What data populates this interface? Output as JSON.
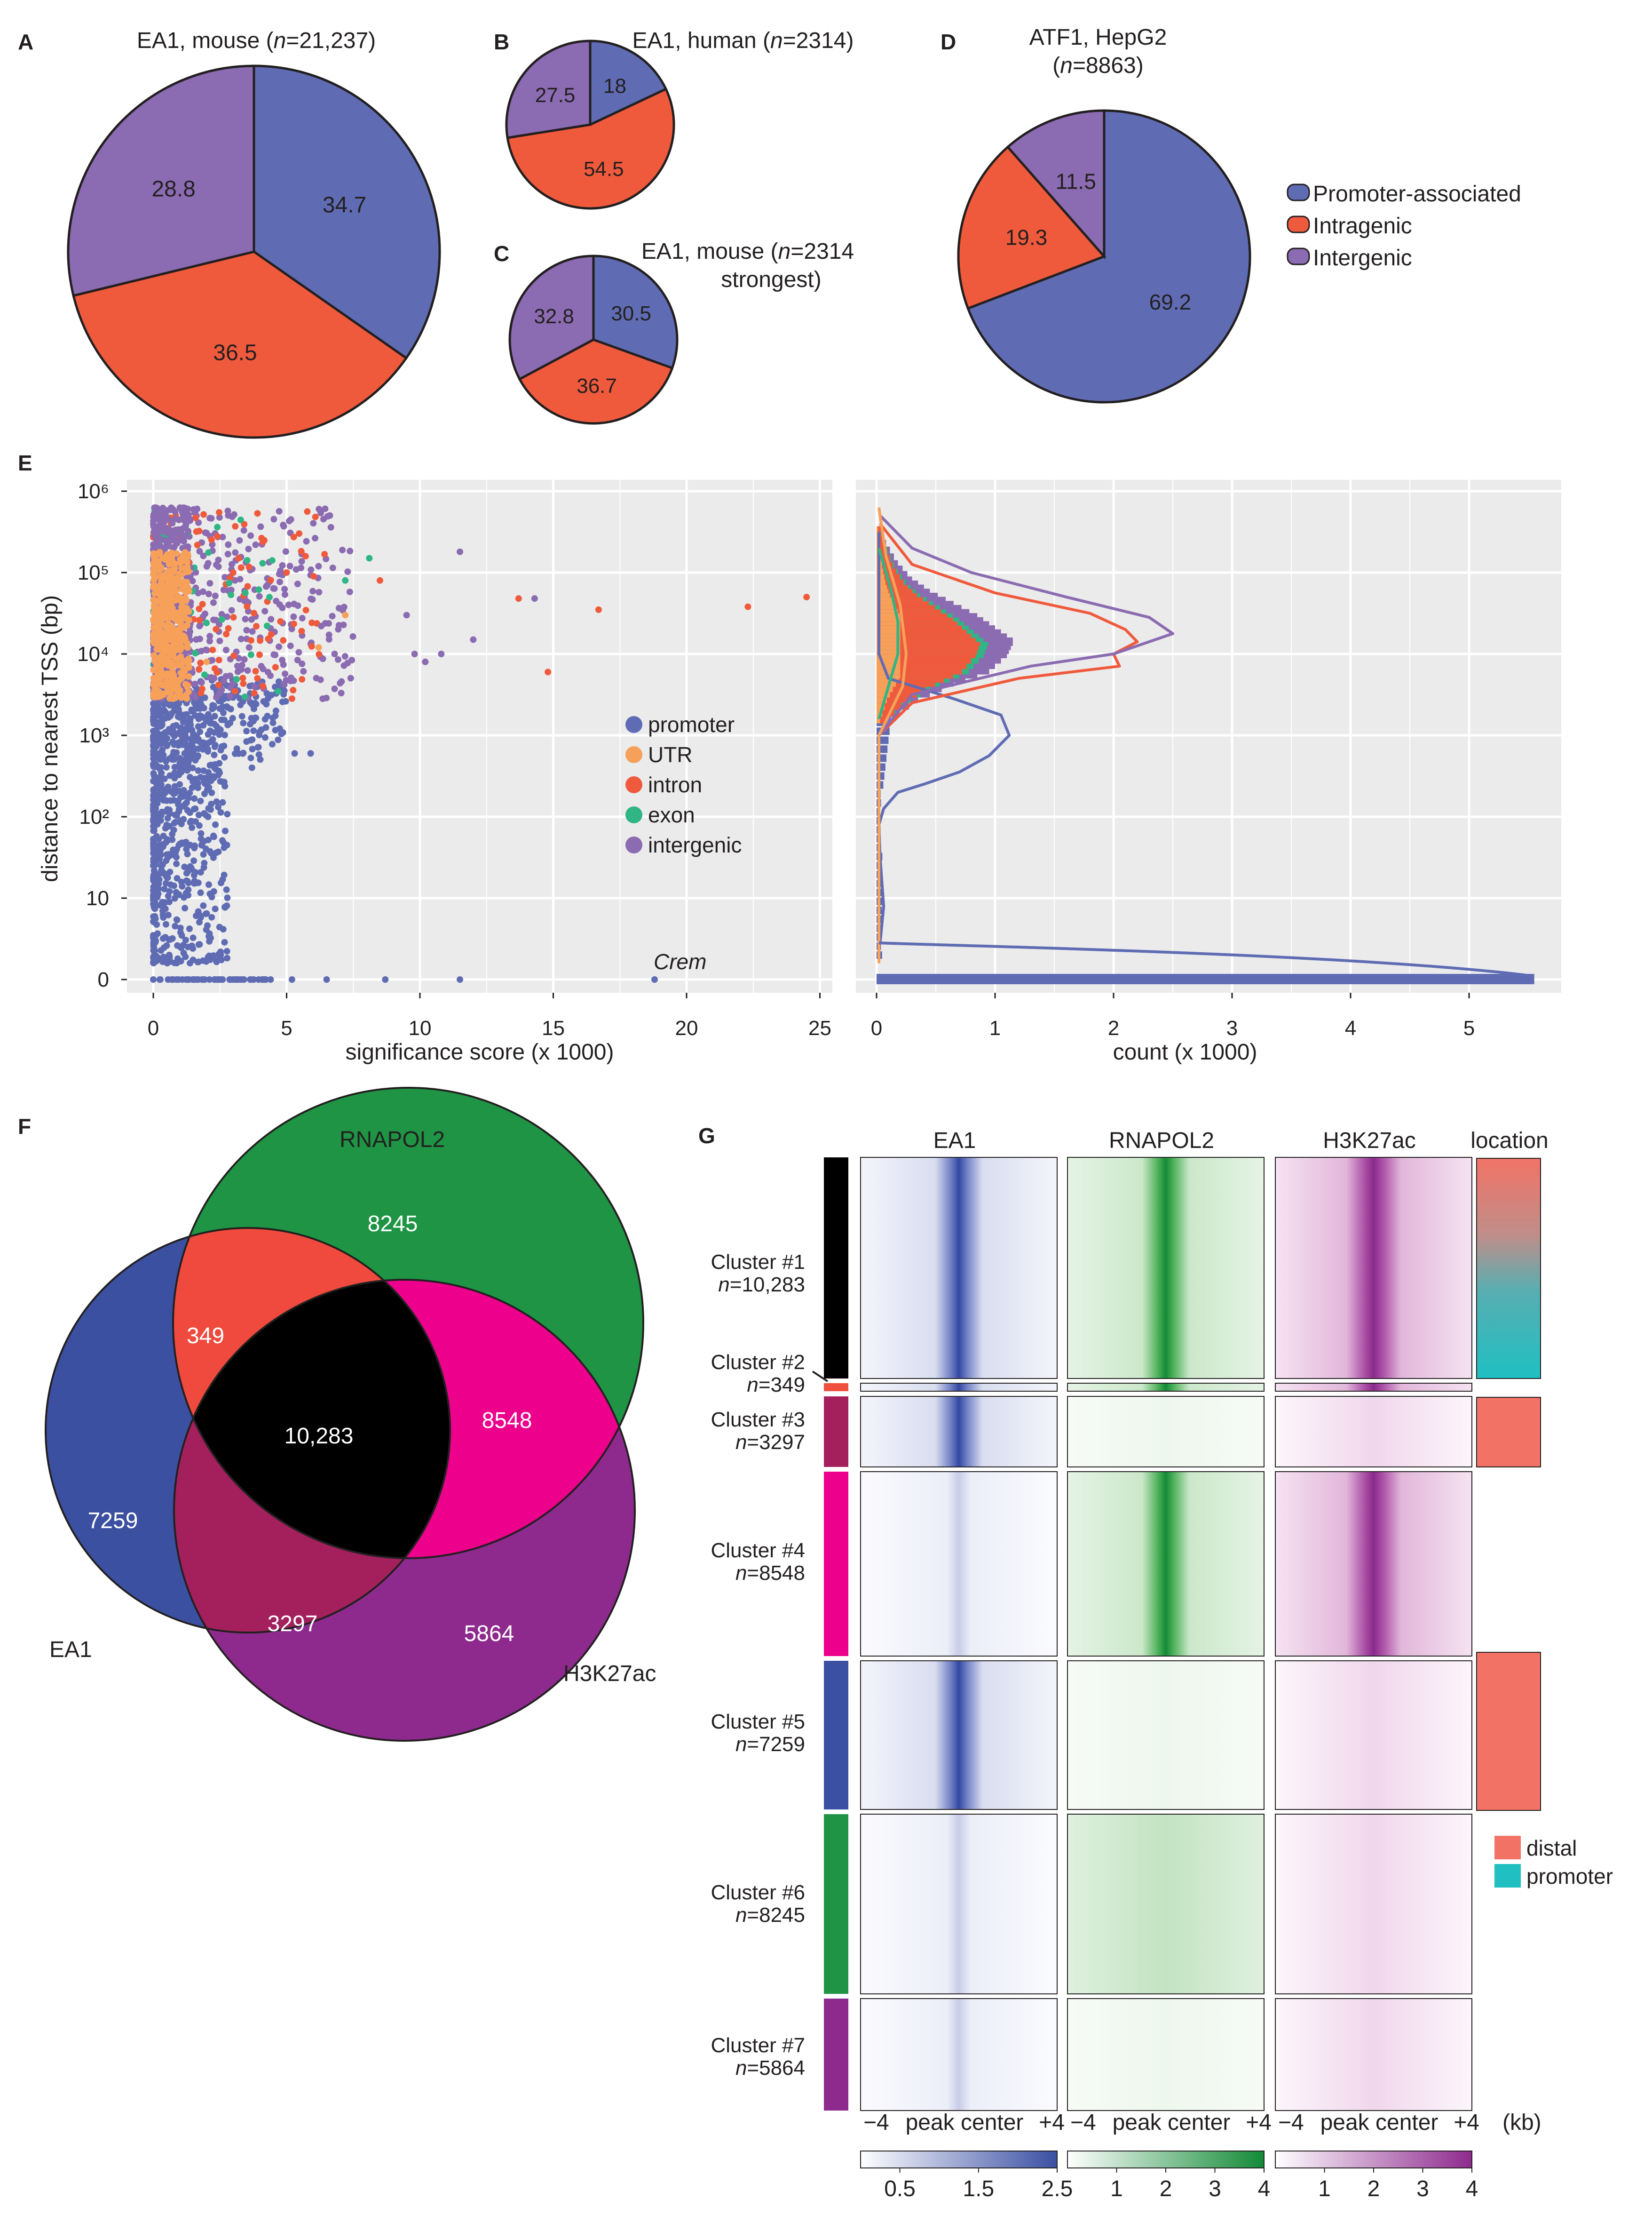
{
  "panels": {
    "A": {
      "letter": "A",
      "title": [
        "EA1, mouse (",
        "n",
        "=21,237)"
      ],
      "values": [
        34.7,
        36.5,
        28.8
      ],
      "labels": [
        "34.7",
        "36.5",
        "28.8"
      ]
    },
    "B": {
      "letter": "B",
      "title": [
        "EA1, human (",
        "n",
        "=2314)"
      ],
      "values": [
        18,
        54.5,
        27.5
      ],
      "labels": [
        "18",
        "54.5",
        "27.5"
      ]
    },
    "C": {
      "letter": "C",
      "title_line1": [
        "EA1, mouse (",
        "n",
        "=2314"
      ],
      "title_line2": "strongest)",
      "values": [
        30.5,
        36.7,
        32.8
      ],
      "labels": [
        "30.5",
        "36.7",
        "32.8"
      ]
    },
    "D": {
      "letter": "D",
      "title_line1": "ATF1, HepG2",
      "title_line2": [
        "(",
        "n",
        "=8863)"
      ],
      "values": [
        69.2,
        19.3,
        11.5
      ],
      "labels": [
        "69.2",
        "19.3",
        "11.5"
      ]
    },
    "E": {
      "letter": "E"
    },
    "F": {
      "letter": "F"
    },
    "G": {
      "letter": "G"
    }
  },
  "pie_legend": [
    "Promoter-associated",
    "Intragenic",
    "Intergenic"
  ],
  "colors": {
    "promoter": "#5f6cb4",
    "intragenic": "#f05a3c",
    "intergenic": "#8b6bb1",
    "utr": "#f7a05a",
    "exon": "#30b584",
    "panel_bg": "#ebebeb",
    "ea1": "#3b4fa3",
    "rnapol2": "#1e9444",
    "h3k27ac": "#8e2a8e",
    "c2": "#f04e3e",
    "c3": "#a3205d",
    "c4": "#ec008c",
    "distal": "#f27366",
    "promoter_loc": "#1fbfc2"
  },
  "chart_data": [
    {
      "type": "scatter",
      "xlabel": "significance score (x 1000)",
      "ylabel": "distance to nearest TSS (bp)",
      "xlim": [
        0,
        25
      ],
      "x_ticks": [
        "0",
        "5",
        "10",
        "15",
        "20",
        "25"
      ],
      "y_ticks": [
        "0",
        "10",
        "10²",
        "10³",
        "10⁴",
        "10⁵",
        "10⁶"
      ],
      "grid": true,
      "legend_position": "right",
      "legend": [
        "promoter",
        "UTR",
        "intron",
        "exon",
        "intergenic"
      ],
      "annotation": "Crem",
      "series": [
        {
          "name": "promoter",
          "points": [
            [
              18.8,
              0
            ],
            [
              11.5,
              0
            ],
            [
              8.7,
              0
            ],
            [
              6.5,
              0
            ],
            [
              5.2,
              0
            ],
            [
              4.4,
              0
            ],
            [
              2.6,
              150
            ],
            [
              1.9,
              50
            ],
            [
              5.3,
              600
            ],
            [
              5.9,
              600
            ],
            [
              3.7,
              400
            ],
            [
              4.6,
              2000
            ]
          ]
        },
        {
          "name": "intron",
          "points": [
            [
              24.5,
              50000
            ],
            [
              22.3,
              38000
            ],
            [
              16.7,
              35000
            ],
            [
              14.8,
              6000
            ],
            [
              13.7,
              48000
            ],
            [
              8.5,
              80000
            ],
            [
              5.0,
              100000
            ],
            [
              3.2,
              150000
            ]
          ]
        },
        {
          "name": "exon",
          "points": [
            [
              8.1,
              150000
            ],
            [
              7.2,
              80000
            ],
            [
              4.1,
              130000
            ]
          ]
        },
        {
          "name": "intergenic",
          "points": [
            [
              14.3,
              48000
            ],
            [
              11.5,
              180000
            ],
            [
              12.0,
              15000
            ],
            [
              9.8,
              10000
            ],
            [
              10.8,
              10000
            ],
            [
              9.5,
              30000
            ],
            [
              10.2,
              8000
            ],
            [
              6.8,
              10000
            ],
            [
              6.3,
              22000
            ]
          ]
        },
        {
          "name": "UTR",
          "points": [
            [
              6.2,
              12000
            ],
            [
              7.2,
              30000
            ],
            [
              1.0,
              20000
            ],
            [
              2.0,
              8000
            ]
          ]
        }
      ]
    },
    {
      "type": "area",
      "xlabel": "count (x 1000)",
      "xlim": [
        0,
        5.6
      ],
      "x_ticks": [
        "0",
        "1",
        "2",
        "3",
        "4",
        "5"
      ],
      "grid": true,
      "series": [
        {
          "name": "promoter",
          "points": [
            [
              0.03,
              0.45
            ],
            [
              0.06,
              0.9
            ],
            [
              0.03,
              1.5
            ],
            [
              0.02,
              1.9
            ],
            [
              0.06,
              2.1
            ],
            [
              0.18,
              2.3
            ],
            [
              0.4,
              2.4
            ],
            [
              0.7,
              2.55
            ],
            [
              0.95,
              2.75
            ],
            [
              1.12,
              3.0
            ],
            [
              1.05,
              3.25
            ],
            [
              0.65,
              3.45
            ],
            [
              0.1,
              3.7
            ],
            [
              0.02,
              4.0
            ],
            [
              0.02,
              5.5
            ]
          ]
        },
        {
          "name": "intron",
          "points": [
            [
              0.02,
              3.0
            ],
            [
              0.3,
              3.4
            ],
            [
              1.2,
              3.7
            ],
            [
              2.05,
              3.85
            ],
            [
              2.0,
              4.0
            ],
            [
              2.2,
              4.15
            ],
            [
              2.1,
              4.3
            ],
            [
              1.8,
              4.5
            ],
            [
              1.0,
              4.75
            ],
            [
              0.3,
              5.1
            ],
            [
              0.03,
              5.6
            ]
          ]
        },
        {
          "name": "intergenic",
          "points": [
            [
              0.02,
              3.0
            ],
            [
              0.3,
              3.5
            ],
            [
              1.3,
              3.85
            ],
            [
              2.0,
              4.0
            ],
            [
              2.5,
              4.25
            ],
            [
              2.3,
              4.45
            ],
            [
              1.6,
              4.7
            ],
            [
              0.8,
              5.0
            ],
            [
              0.3,
              5.3
            ],
            [
              0.03,
              5.7
            ]
          ]
        },
        {
          "name": "exon",
          "points": [
            [
              0.02,
              3.2
            ],
            [
              0.1,
              3.6
            ],
            [
              0.18,
              4.0
            ],
            [
              0.18,
              4.4
            ],
            [
              0.12,
              4.8
            ],
            [
              0.02,
              5.3
            ]
          ]
        },
        {
          "name": "UTR",
          "points": [
            [
              0.02,
              0.2
            ],
            [
              0.02,
              3.0
            ],
            [
              0.22,
              3.6
            ],
            [
              0.25,
              4.0
            ],
            [
              0.2,
              4.6
            ],
            [
              0.08,
              5.2
            ],
            [
              0.02,
              5.8
            ]
          ]
        }
      ],
      "bars": [
        {
          "name": "promoter",
          "bottom_bin": 5.55
        },
        {
          "name": "stacked",
          "points": [
            [
              0.12,
              3.2
            ],
            [
              0.35,
              3.45
            ],
            [
              0.65,
              3.65
            ],
            [
              0.95,
              3.8
            ],
            [
              1.1,
              4.0
            ],
            [
              1.15,
              4.15
            ],
            [
              1.0,
              4.3
            ],
            [
              0.85,
              4.45
            ],
            [
              0.65,
              4.6
            ],
            [
              0.45,
              4.75
            ],
            [
              0.3,
              4.9
            ],
            [
              0.18,
              5.1
            ],
            [
              0.08,
              5.35
            ],
            [
              0.03,
              5.6
            ]
          ]
        }
      ]
    }
  ],
  "venn": {
    "labels": {
      "ea1": "EA1",
      "rnapol2": "RNAPOL2",
      "h3k27ac": "H3K27ac"
    },
    "counts": {
      "ea1_only": "7259",
      "rnapol2_only": "8245",
      "h3k27ac_only": "5864",
      "ea1_rnapol2": "349",
      "ea1_h3k27ac": "3297",
      "rnapol2_h3k27ac": "8548",
      "all": "10,283"
    }
  },
  "heatmap": {
    "columns": [
      "EA1",
      "RNAPOL2",
      "H3K27ac",
      "location"
    ],
    "clusters": [
      {
        "label": "Cluster #1",
        "n": "=10,283",
        "color": "#000000"
      },
      {
        "label": "Cluster #2",
        "n": "=349",
        "color": "#f04e3e"
      },
      {
        "label": "Cluster #3",
        "n": "=3297",
        "color": "#a3205d"
      },
      {
        "label": "Cluster #4",
        "n": "=8548",
        "color": "#ec008c"
      },
      {
        "label": "Cluster #5",
        "n": "=7259",
        "color": "#3b4fa3"
      },
      {
        "label": "Cluster #6",
        "n": "=8245",
        "color": "#1e9444"
      },
      {
        "label": "Cluster #7",
        "n": "=5864",
        "color": "#8e2a8e"
      }
    ],
    "n_prefix": "n",
    "axis_labels": [
      "−4",
      "peak center",
      "+4"
    ],
    "unit": "(kb)",
    "location_legend": [
      "distal",
      "promoter"
    ],
    "colorbars": [
      {
        "ticks": [
          "0.5",
          "1.5",
          "2.5"
        ],
        "values": [
          0.5,
          1.5,
          2.5
        ],
        "range": [
          0,
          2.5
        ]
      },
      {
        "ticks": [
          "1",
          "2",
          "3",
          "4"
        ],
        "values": [
          1,
          2,
          3,
          4
        ],
        "range": [
          0,
          4
        ]
      },
      {
        "ticks": [
          "1",
          "2",
          "3",
          "4"
        ],
        "values": [
          1,
          2,
          3,
          4
        ],
        "range": [
          0,
          4
        ]
      }
    ]
  }
}
